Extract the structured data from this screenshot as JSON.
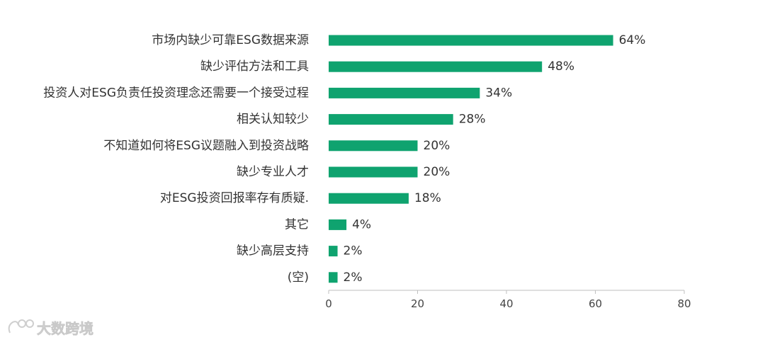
{
  "chart_data": {
    "type": "bar",
    "orientation": "horizontal",
    "categories": [
      "市场内缺少可靠ESG数据来源",
      "缺少评估方法和工具",
      "投资人对ESG负责任投资理念还需要一个接受过程",
      "相关认知较少",
      "不知道如何将ESG议题融入到投资战略",
      "缺少专业人才",
      "对ESG投资回报率存有质疑.",
      "其它",
      "缺少高层支持",
      "(空)"
    ],
    "values": [
      64,
      48,
      34,
      28,
      20,
      20,
      18,
      4,
      2,
      2
    ],
    "value_labels": [
      "64%",
      "48%",
      "34%",
      "28%",
      "20%",
      "20%",
      "18%",
      "4%",
      "2%",
      "2%"
    ],
    "xticks": [
      0,
      20,
      40,
      60,
      80
    ],
    "xlim": [
      0,
      80
    ],
    "bar_color": "#0fa36f",
    "grid": false,
    "title": "",
    "xlabel": "",
    "ylabel": ""
  },
  "watermark": {
    "text": "大数跨境",
    "icon": "brand-logo-icon"
  }
}
